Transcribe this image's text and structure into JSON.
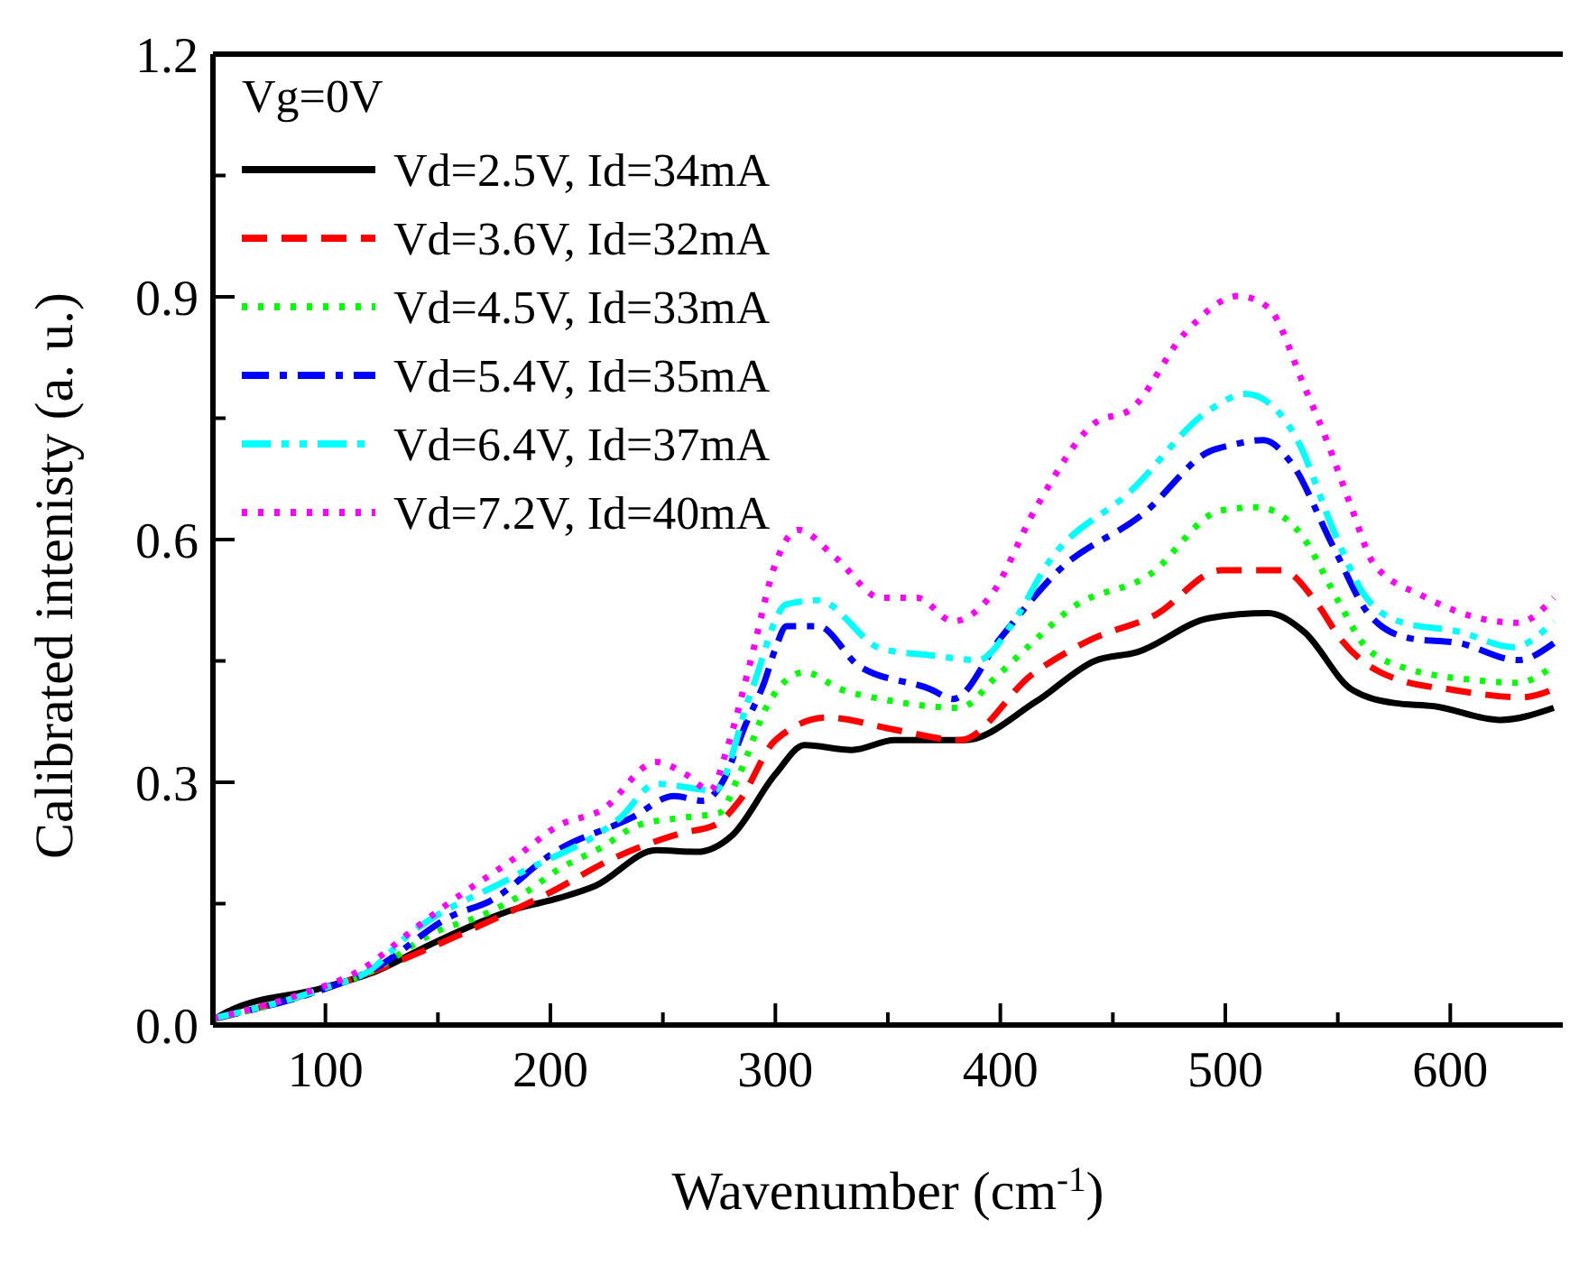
{
  "chart_data": {
    "type": "line",
    "xlabel": "Wavenumber (cm$^{-1}$)",
    "ylabel": "Calibrated intenisty (a. u.)",
    "legend_title": "Vg=0V",
    "legend": "top left",
    "grid": false,
    "marker": "none",
    "xlim": [
      50,
      650
    ],
    "xticks": [
      100,
      {
        "value": 150,
        "label": null
      },
      200,
      {
        "value": 250,
        "label": null
      },
      300,
      {
        "value": 350,
        "label": null
      },
      400,
      {
        "value": 450,
        "label": null
      },
      500,
      {
        "value": 550,
        "label": null
      },
      600
    ],
    "ylim": [
      0,
      1.2
    ],
    "yticks": [
      {
        "value": 0,
        "label": "0.0"
      },
      {
        "value": 0.15,
        "label": null
      },
      0.3,
      {
        "value": 0.45,
        "label": null
      },
      0.6,
      {
        "value": 0.75,
        "label": null
      },
      0.9,
      {
        "value": 1.05,
        "label": null
      },
      1.2
    ],
    "series": [
      {
        "name": "Vd=2.5V, Id=34mA",
        "color": "#000000",
        "line_style": "solid",
        "x": [
          50,
          57,
          99,
          123,
          147,
          184,
          204,
          220,
          247,
          265,
          281,
          300,
          313,
          334,
          353,
          384,
          416,
          442,
          461,
          493,
          519,
          535,
          556,
          575,
          593,
          622,
          646
        ],
        "values": [
          0.006,
          0.017,
          0.046,
          0.067,
          0.1,
          0.143,
          0.157,
          0.172,
          0.216,
          0.214,
          0.235,
          0.31,
          0.346,
          0.34,
          0.352,
          0.352,
          0.4,
          0.45,
          0.461,
          0.503,
          0.509,
          0.486,
          0.415,
          0.398,
          0.394,
          0.377,
          0.392
        ]
      },
      {
        "name": "Vd=3.6V, Id=32mA",
        "color": "#ff0000",
        "line_style": "dashed",
        "x": [
          50,
          100,
          120,
          168,
          200,
          228,
          258,
          273,
          284,
          300,
          323,
          353,
          382,
          414,
          440,
          469,
          498,
          525,
          541,
          551,
          572,
          604,
          632,
          646
        ],
        "values": [
          0.007,
          0.045,
          0.065,
          0.122,
          0.164,
          0.206,
          0.237,
          0.247,
          0.277,
          0.352,
          0.38,
          0.365,
          0.352,
          0.433,
          0.476,
          0.507,
          0.562,
          0.562,
          0.52,
          0.478,
          0.432,
          0.413,
          0.405,
          0.415
        ]
      },
      {
        "name": "Vd=4.5V, Id=33mA",
        "color": "#00ff00",
        "line_style": "dotted",
        "x": [
          50,
          100,
          120,
          149,
          170,
          189,
          204,
          223,
          239,
          258,
          275,
          284,
          297,
          313,
          329,
          347,
          382,
          398,
          414,
          432,
          466,
          498,
          514,
          532,
          551,
          561,
          577,
          612,
          630,
          646
        ],
        "values": [
          0.007,
          0.045,
          0.066,
          0.115,
          0.136,
          0.164,
          0.193,
          0.22,
          0.247,
          0.256,
          0.262,
          0.31,
          0.398,
          0.436,
          0.415,
          0.403,
          0.392,
          0.43,
          0.472,
          0.516,
          0.556,
          0.636,
          0.64,
          0.612,
          0.52,
          0.472,
          0.444,
          0.426,
          0.423,
          0.444
        ]
      },
      {
        "name": "Vd=5.4V, Id=35mA",
        "color": "#0000ff",
        "line_style": "dashdot",
        "x": [
          50,
          100,
          120,
          157,
          173,
          202,
          236,
          255,
          268,
          276,
          287,
          295,
          300,
          305,
          319,
          337,
          369,
          379,
          400,
          426,
          464,
          493,
          503,
          517,
          529,
          548,
          564,
          582,
          604,
          630,
          646
        ],
        "values": [
          0.008,
          0.045,
          0.067,
          0.136,
          0.153,
          0.214,
          0.256,
          0.283,
          0.277,
          0.298,
          0.373,
          0.423,
          0.465,
          0.493,
          0.493,
          0.444,
          0.415,
          0.403,
          0.478,
          0.562,
          0.633,
          0.709,
          0.717,
          0.723,
          0.696,
          0.591,
          0.507,
          0.478,
          0.472,
          0.451,
          0.472
        ]
      },
      {
        "name": "Vd=6.4V, Id=37mA",
        "color": "#00ffff",
        "line_style": "dashdotdot",
        "x": [
          50,
          100,
          120,
          136,
          184,
          231,
          247,
          273,
          289,
          305,
          319,
          347,
          369,
          390,
          406,
          421,
          458,
          493,
          509,
          521,
          532,
          548,
          561,
          577,
          604,
          628,
          646
        ],
        "values": [
          0.008,
          0.046,
          0.068,
          0.109,
          0.184,
          0.256,
          0.298,
          0.29,
          0.41,
          0.52,
          0.525,
          0.465,
          0.457,
          0.451,
          0.499,
          0.57,
          0.66,
          0.76,
          0.78,
          0.765,
          0.723,
          0.612,
          0.535,
          0.499,
          0.486,
          0.467,
          0.499
        ]
      },
      {
        "name": "Vd=7.2V, Id=40mA",
        "color": "#ff00ff",
        "line_style": "dotted",
        "x": [
          50,
          89,
          115,
          141,
          155,
          184,
          204,
          223,
          247,
          260,
          271,
          279,
          289,
          300,
          310,
          327,
          347,
          363,
          379,
          395,
          416,
          442,
          458,
          482,
          506,
          519,
          535,
          545,
          556,
          566,
          588,
          620,
          630,
          646
        ],
        "values": [
          0.008,
          0.038,
          0.067,
          0.122,
          0.151,
          0.206,
          0.247,
          0.266,
          0.325,
          0.31,
          0.29,
          0.346,
          0.45,
          0.57,
          0.612,
          0.577,
          0.528,
          0.528,
          0.499,
          0.528,
          0.64,
          0.744,
          0.761,
          0.855,
          0.901,
          0.887,
          0.79,
          0.723,
          0.64,
          0.57,
          0.53,
          0.499,
          0.497,
          0.528
        ]
      }
    ]
  }
}
